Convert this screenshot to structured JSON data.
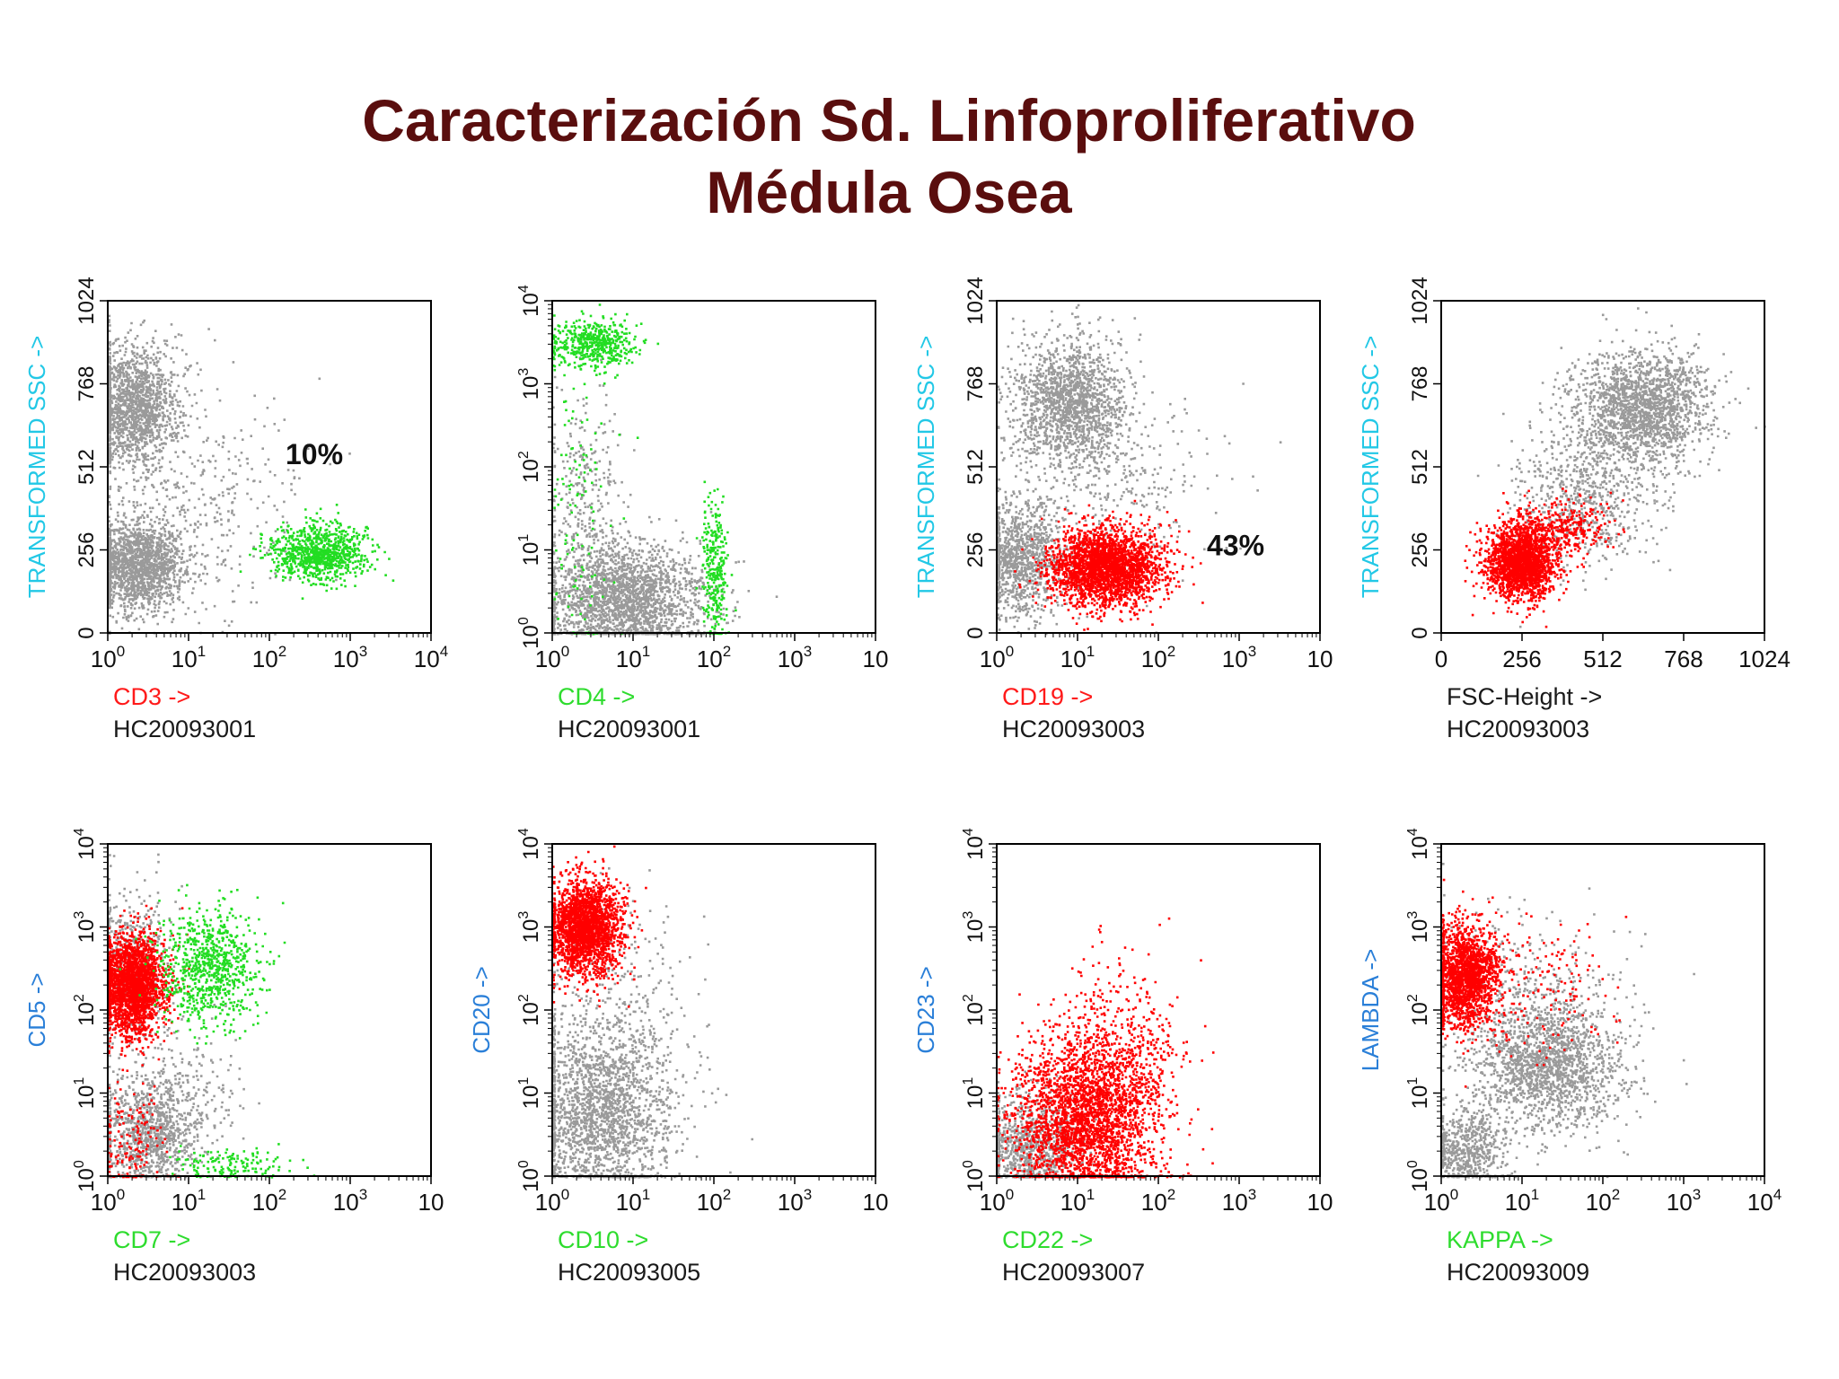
{
  "slide": {
    "title_line1": "Caracterización Sd. Linfoproliferativo",
    "title_line2": "Médula Osea"
  },
  "colors": {
    "title": "#5a0e0e",
    "gray_events": "#9a9a9a",
    "green_events": "#22dd22",
    "red_events": "#ff0000",
    "label_cyan": "#22c8e6",
    "label_blue": "#2a7fd8",
    "label_red": "#ff1a1a",
    "label_green": "#2edc2e",
    "label_black": "#1a1a1a"
  },
  "chart_data": [
    {
      "id": "p1",
      "type": "scatter",
      "xlabel": "CD3 ->",
      "xlabel_color": "label_red",
      "ylabel": "TRANSFORMED SSC ->",
      "ylabel_color": "label_cyan",
      "sample": "HC20093001",
      "xscale": "log",
      "xlim": [
        0,
        4
      ],
      "xticks": [
        "10",
        "10",
        "10",
        "10",
        "10"
      ],
      "xexp": [
        "0",
        "1",
        "2",
        "3",
        "4"
      ],
      "yscale": "linear",
      "ylim": [
        0,
        1024
      ],
      "yticks": [
        "0",
        "256",
        "512",
        "768",
        "1024"
      ],
      "annotation": "10%",
      "populations": [
        {
          "color": "gray_events",
          "n": 1500,
          "cx": 0.3,
          "cy": 700,
          "sx": 0.28,
          "sy": 95
        },
        {
          "color": "gray_events",
          "n": 1700,
          "cx": 0.35,
          "cy": 210,
          "sx": 0.3,
          "sy": 70
        },
        {
          "color": "gray_events",
          "n": 350,
          "cx": 1.2,
          "cy": 420,
          "sx": 0.6,
          "sy": 180
        },
        {
          "color": "green_events",
          "n": 900,
          "cx": 2.6,
          "cy": 250,
          "sx": 0.3,
          "sy": 45
        }
      ]
    },
    {
      "id": "p2",
      "type": "scatter",
      "xlabel": "CD4 ->",
      "xlabel_color": "label_green",
      "ylabel": "",
      "ylabel_color": "label_cyan",
      "sample": "HC20093001",
      "xscale": "log",
      "xlim": [
        0,
        4
      ],
      "xticks": [
        "10",
        "10",
        "10",
        "10",
        "10"
      ],
      "xexp": [
        "0",
        "1",
        "2",
        "3",
        ""
      ],
      "yscale": "log",
      "ylim": [
        0,
        4
      ],
      "yticks": [
        "10",
        "10",
        "10",
        "10",
        "10"
      ],
      "yexp": [
        "0",
        "1",
        "2",
        "3",
        "4"
      ],
      "populations": [
        {
          "color": "gray_events",
          "n": 2200,
          "cx": 0.9,
          "cy": 0.4,
          "sx": 0.5,
          "sy": 0.35
        },
        {
          "color": "gray_events",
          "n": 300,
          "cx": 0.4,
          "cy": 1.6,
          "sx": 0.25,
          "sy": 0.7
        },
        {
          "color": "green_events",
          "n": 500,
          "cx": 0.5,
          "cy": 3.5,
          "sx": 0.25,
          "sy": 0.15
        },
        {
          "color": "green_events",
          "n": 300,
          "cx": 2.0,
          "cy": 0.8,
          "sx": 0.08,
          "sy": 0.45
        },
        {
          "color": "green_events",
          "n": 120,
          "cx": 0.3,
          "cy": 1.5,
          "sx": 0.2,
          "sy": 1.0
        }
      ]
    },
    {
      "id": "p3",
      "type": "scatter",
      "xlabel": "CD19 ->",
      "xlabel_color": "label_red",
      "ylabel": "TRANSFORMED SSC ->",
      "ylabel_color": "label_cyan",
      "sample": "HC20093003",
      "xscale": "log",
      "xlim": [
        0,
        4
      ],
      "xticks": [
        "10",
        "10",
        "10",
        "10",
        "10"
      ],
      "xexp": [
        "0",
        "1",
        "2",
        "3",
        ""
      ],
      "yscale": "linear",
      "ylim": [
        0,
        1024
      ],
      "yticks": [
        "0",
        "256",
        "512",
        "768",
        "1024"
      ],
      "annotation": "43%",
      "populations": [
        {
          "color": "gray_events",
          "n": 1600,
          "cx": 0.9,
          "cy": 710,
          "sx": 0.35,
          "sy": 100
        },
        {
          "color": "gray_events",
          "n": 1000,
          "cx": 0.3,
          "cy": 230,
          "sx": 0.25,
          "sy": 90
        },
        {
          "color": "gray_events",
          "n": 300,
          "cx": 1.5,
          "cy": 450,
          "sx": 0.6,
          "sy": 170
        },
        {
          "color": "red_events",
          "n": 2600,
          "cx": 1.35,
          "cy": 210,
          "sx": 0.35,
          "sy": 60
        }
      ]
    },
    {
      "id": "p4",
      "type": "scatter",
      "xlabel": "FSC-Height ->",
      "xlabel_color": "label_black",
      "ylabel": "TRANSFORMED SSC ->",
      "ylabel_color": "label_cyan",
      "sample": "HC20093003",
      "xscale": "linear",
      "xlim": [
        0,
        1024
      ],
      "xticks": [
        "0",
        "256",
        "512",
        "768",
        "1024"
      ],
      "yscale": "linear",
      "ylim": [
        0,
        1024
      ],
      "yticks": [
        "0",
        "256",
        "512",
        "768",
        "1024"
      ],
      "populations": [
        {
          "color": "gray_events",
          "n": 1800,
          "cx": 640,
          "cy": 700,
          "sx": 110,
          "sy": 90
        },
        {
          "color": "gray_events",
          "n": 700,
          "cx": 450,
          "cy": 420,
          "sx": 110,
          "sy": 110
        },
        {
          "color": "red_events",
          "n": 2000,
          "cx": 250,
          "cy": 220,
          "sx": 55,
          "sy": 55
        },
        {
          "color": "red_events",
          "n": 350,
          "cx": 380,
          "cy": 330,
          "sx": 80,
          "sy": 40
        }
      ]
    },
    {
      "id": "p5",
      "type": "scatter",
      "xlabel": "CD7 ->",
      "xlabel_color": "label_green",
      "ylabel": "CD5 ->",
      "ylabel_color": "label_blue",
      "sample": "HC20093003",
      "xscale": "log",
      "xlim": [
        0,
        4
      ],
      "xticks": [
        "10",
        "10",
        "10",
        "10",
        "10"
      ],
      "xexp": [
        "0",
        "1",
        "2",
        "3",
        ""
      ],
      "yscale": "log",
      "ylim": [
        0,
        4
      ],
      "yticks": [
        "10",
        "10",
        "10",
        "10",
        "10"
      ],
      "yexp": [
        "0",
        "1",
        "2",
        "3",
        "4"
      ],
      "populations": [
        {
          "color": "gray_events",
          "n": 900,
          "cx": 0.5,
          "cy": 0.5,
          "sx": 0.3,
          "sy": 0.3
        },
        {
          "color": "gray_events",
          "n": 300,
          "cx": 0.8,
          "cy": 1.0,
          "sx": 0.4,
          "sy": 0.4
        },
        {
          "color": "gray_events",
          "n": 400,
          "cx": 0.3,
          "cy": 2.6,
          "sx": 0.25,
          "sy": 0.5
        },
        {
          "color": "red_events",
          "n": 2200,
          "cx": 0.3,
          "cy": 2.3,
          "sx": 0.2,
          "sy": 0.3
        },
        {
          "color": "red_events",
          "n": 150,
          "cx": 0.3,
          "cy": 0.4,
          "sx": 0.2,
          "sy": 0.35
        },
        {
          "color": "green_events",
          "n": 800,
          "cx": 1.25,
          "cy": 2.5,
          "sx": 0.3,
          "sy": 0.35
        },
        {
          "color": "green_events",
          "n": 150,
          "cx": 1.5,
          "cy": 0.15,
          "sx": 0.35,
          "sy": 0.1
        }
      ]
    },
    {
      "id": "p6",
      "type": "scatter",
      "xlabel": "CD10 ->",
      "xlabel_color": "label_green",
      "ylabel": "CD20 ->",
      "ylabel_color": "label_blue",
      "sample": "HC20093005",
      "xscale": "log",
      "xlim": [
        0,
        4
      ],
      "xticks": [
        "10",
        "10",
        "10",
        "10",
        "10"
      ],
      "xexp": [
        "0",
        "1",
        "2",
        "3",
        ""
      ],
      "yscale": "log",
      "ylim": [
        0,
        4
      ],
      "yticks": [
        "10",
        "10",
        "10",
        "10",
        "10"
      ],
      "yexp": [
        "0",
        "1",
        "2",
        "3",
        "4"
      ],
      "populations": [
        {
          "color": "gray_events",
          "n": 2000,
          "cx": 0.6,
          "cy": 0.8,
          "sx": 0.45,
          "sy": 0.55
        },
        {
          "color": "gray_events",
          "n": 250,
          "cx": 0.9,
          "cy": 2.0,
          "sx": 0.5,
          "sy": 0.7
        },
        {
          "color": "red_events",
          "n": 2200,
          "cx": 0.4,
          "cy": 3.0,
          "sx": 0.22,
          "sy": 0.28
        }
      ]
    },
    {
      "id": "p7",
      "type": "scatter",
      "xlabel": "CD22 ->",
      "xlabel_color": "label_green",
      "ylabel": "CD23 ->",
      "ylabel_color": "label_blue",
      "sample": "HC20093007",
      "xscale": "log",
      "xlim": [
        0,
        4
      ],
      "xticks": [
        "10",
        "10",
        "10",
        "10",
        "10"
      ],
      "xexp": [
        "0",
        "1",
        "2",
        "3",
        ""
      ],
      "yscale": "log",
      "ylim": [
        0,
        4
      ],
      "yticks": [
        "10",
        "10",
        "10",
        "10",
        "10"
      ],
      "yexp": [
        "0",
        "1",
        "2",
        "3",
        "4"
      ],
      "populations": [
        {
          "color": "gray_events",
          "n": 900,
          "cx": 0.4,
          "cy": 0.35,
          "sx": 0.3,
          "sy": 0.3
        },
        {
          "color": "red_events",
          "n": 2800,
          "cx": 1.1,
          "cy": 0.7,
          "sx": 0.45,
          "sy": 0.5
        },
        {
          "color": "red_events",
          "n": 400,
          "cx": 1.5,
          "cy": 1.5,
          "sx": 0.4,
          "sy": 0.55
        }
      ]
    },
    {
      "id": "p8",
      "type": "scatter",
      "xlabel": "KAPPA ->",
      "xlabel_color": "label_green",
      "ylabel": "LAMBDA ->",
      "ylabel_color": "label_blue",
      "sample": "HC20093009",
      "xscale": "log",
      "xlim": [
        0,
        4
      ],
      "xticks": [
        "10",
        "10",
        "10",
        "10",
        "10"
      ],
      "xexp": [
        "0",
        "1",
        "2",
        "3",
        "4"
      ],
      "yscale": "log",
      "ylim": [
        0,
        4
      ],
      "yticks": [
        "10",
        "10",
        "10",
        "10",
        "10"
      ],
      "yexp": [
        "0",
        "1",
        "2",
        "3",
        "4"
      ],
      "populations": [
        {
          "color": "gray_events",
          "n": 600,
          "cx": 0.3,
          "cy": 0.3,
          "sx": 0.22,
          "sy": 0.25
        },
        {
          "color": "gray_events",
          "n": 1700,
          "cx": 1.3,
          "cy": 1.35,
          "sx": 0.45,
          "sy": 0.4
        },
        {
          "color": "gray_events",
          "n": 300,
          "cx": 1.0,
          "cy": 2.2,
          "sx": 0.6,
          "sy": 0.6
        },
        {
          "color": "red_events",
          "n": 1800,
          "cx": 0.3,
          "cy": 2.4,
          "sx": 0.2,
          "sy": 0.3
        },
        {
          "color": "red_events",
          "n": 150,
          "cx": 1.3,
          "cy": 2.3,
          "sx": 0.4,
          "sy": 0.4
        }
      ]
    }
  ]
}
